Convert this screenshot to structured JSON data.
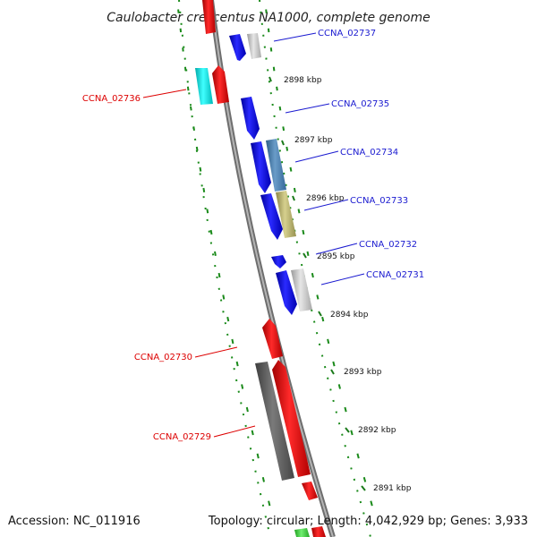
{
  "title": "Caulobacter crescentus NA1000, complete genome",
  "footer": {
    "accession": "Accession: NC_011916",
    "summary": "Topology: circular; Length: 4,042,929 bp; Genes: 3,933"
  },
  "colors": {
    "plus_label": "#1a1ad0",
    "minus_label": "#dd0000",
    "backbone": "#888888",
    "tick_major": "#1a7a1a",
    "tick_minor": "#1a8a1a"
  },
  "ticks": [
    {
      "label": "2898 kbp"
    },
    {
      "label": "2897 kbp"
    },
    {
      "label": "2896 kbp"
    },
    {
      "label": "2895 kbp"
    },
    {
      "label": "2894 kbp"
    },
    {
      "label": "2893 kbp"
    },
    {
      "label": "2892 kbp"
    },
    {
      "label": "2891 kbp"
    }
  ],
  "features": [
    {
      "label": "CCNA_02737",
      "strand": "plus"
    },
    {
      "label": "CCNA_02736",
      "strand": "minus"
    },
    {
      "label": "CCNA_02735",
      "strand": "plus"
    },
    {
      "label": "CCNA_02734",
      "strand": "plus"
    },
    {
      "label": "CCNA_02733",
      "strand": "plus"
    },
    {
      "label": "CCNA_02732",
      "strand": "plus"
    },
    {
      "label": "CCNA_02731",
      "strand": "plus"
    },
    {
      "label": "CCNA_02730",
      "strand": "minus"
    },
    {
      "label": "CCNA_02729",
      "strand": "minus"
    }
  ]
}
